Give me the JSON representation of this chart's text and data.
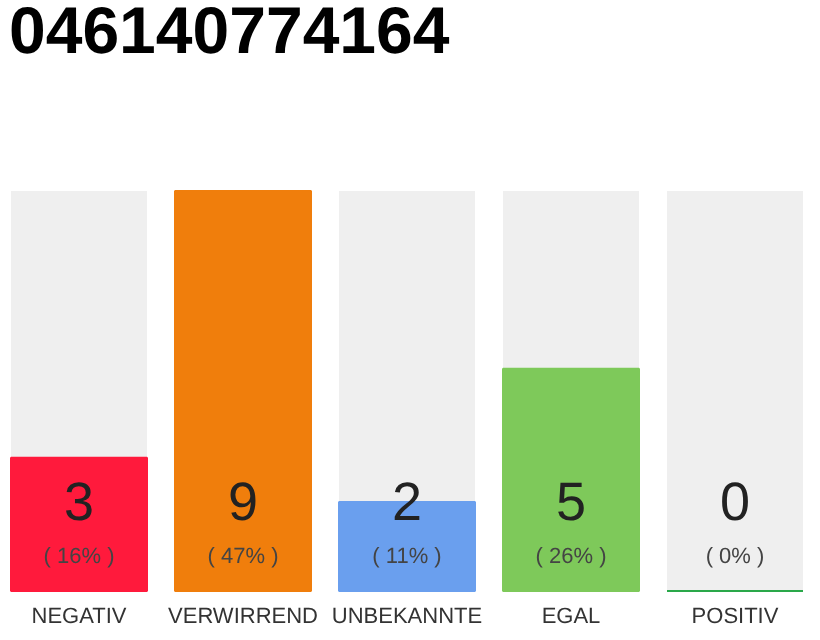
{
  "chart_data": {
    "type": "bar",
    "title": "046140774164",
    "ylim": [
      0,
      9
    ],
    "categories": [
      "NEGATIV",
      "VERWIRREND",
      "UNBEKANNTE",
      "EGAL",
      "POSITIV"
    ],
    "values": [
      3,
      9,
      2,
      5,
      0
    ],
    "colors": [
      "#ff1a3c",
      "#f07e0c",
      "#6a9fee",
      "#7ec95a",
      "#2aa84a"
    ],
    "value_labels": [
      "3\n( 16% )",
      "9\n( 47% )",
      "2\n( 11% )",
      "5\n( 26% )",
      "0\n( 0% )"
    ],
    "grid": false
  }
}
